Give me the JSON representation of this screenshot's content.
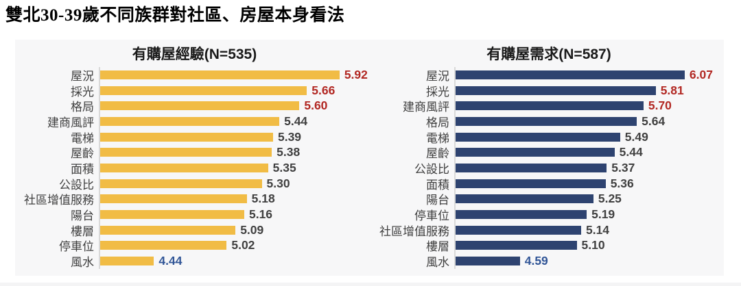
{
  "page": {
    "title": "雙北30-39歲不同族群對社區、房屋本身看法"
  },
  "colors": {
    "experience_bar": "#F1BC45",
    "demand_bar": "#2E4370",
    "value_top": "#B22823",
    "value_default": "#404040",
    "value_lowest": "#2F5496",
    "axis_line": "#D9D9D9",
    "panel_bg": "#F7F7F8",
    "label_text": "#3F3F3F"
  },
  "chart_data": [
    {
      "type": "bar",
      "orientation": "horizontal",
      "title": "有購屋經驗(N=535)",
      "bar_color_key": "experience_bar",
      "xlim": [
        4.0,
        6.2
      ],
      "grid": false,
      "legend": false,
      "categories": [
        "屋況",
        "採光",
        "格局",
        "建商風評",
        "電梯",
        "屋齡",
        "面積",
        "公設比",
        "社區增值服務",
        "陽台",
        "樓層",
        "停車位",
        "風水"
      ],
      "values": [
        5.92,
        5.66,
        5.6,
        5.44,
        5.39,
        5.38,
        5.35,
        5.3,
        5.18,
        5.16,
        5.09,
        5.02,
        4.44
      ],
      "value_label_color_keys": [
        "value_top",
        "value_top",
        "value_top",
        "value_default",
        "value_default",
        "value_default",
        "value_default",
        "value_default",
        "value_default",
        "value_default",
        "value_default",
        "value_default",
        "value_lowest"
      ]
    },
    {
      "type": "bar",
      "orientation": "horizontal",
      "title": "有購屋需求(N=587)",
      "bar_color_key": "demand_bar",
      "xlim": [
        4.0,
        6.2
      ],
      "grid": false,
      "legend": false,
      "categories": [
        "屋況",
        "採光",
        "建商風評",
        "格局",
        "電梯",
        "屋齡",
        "公設比",
        "面積",
        "陽台",
        "停車位",
        "社區增值服務",
        "樓層",
        "風水"
      ],
      "values": [
        6.07,
        5.81,
        5.7,
        5.64,
        5.49,
        5.44,
        5.37,
        5.36,
        5.25,
        5.19,
        5.14,
        5.1,
        4.59
      ],
      "value_label_color_keys": [
        "value_top",
        "value_top",
        "value_top",
        "value_default",
        "value_default",
        "value_default",
        "value_default",
        "value_default",
        "value_default",
        "value_default",
        "value_default",
        "value_default",
        "value_lowest"
      ]
    }
  ]
}
